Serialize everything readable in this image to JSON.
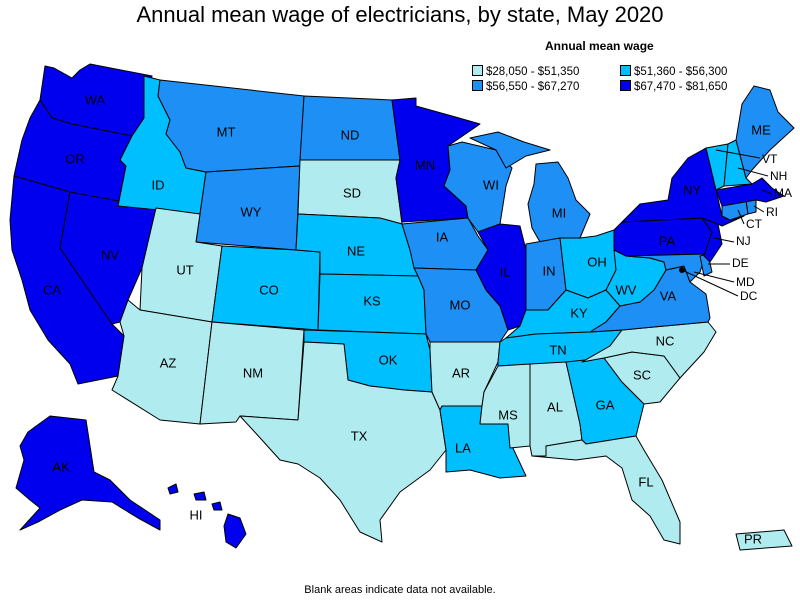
{
  "title": "Annual mean wage of electricians, by state, May 2020",
  "legend": {
    "title": "Annual mean wage",
    "items": [
      {
        "label": "$28,050 - $51,350",
        "color": "#b0ecef"
      },
      {
        "label": "$51,360 - $56,300",
        "color": "#00bfff"
      },
      {
        "label": "$56,550 - $67,270",
        "color": "#1e8ff5"
      },
      {
        "label": "$67,470 - $81,650",
        "color": "#0000ee"
      }
    ]
  },
  "footnote": "Blank areas indicate data not available.",
  "chart_data": {
    "type": "choropleth",
    "title": "Annual mean wage of electricians, by state, May 2020",
    "legend_title": "Annual mean wage",
    "bins": [
      "$28,050 - $51,350",
      "$51,360 - $56,300",
      "$56,550 - $67,270",
      "$67,470 - $81,650"
    ],
    "states": {
      "WA": 3,
      "OR": 3,
      "CA": 3,
      "NV": 3,
      "AK": 3,
      "HI": 3,
      "MN": 3,
      "IL": 3,
      "NY": 3,
      "PA": 3,
      "NJ": 3,
      "MA": 3,
      "MT": 2,
      "WY": 2,
      "ND": 2,
      "IA": 2,
      "MO": 2,
      "WI": 2,
      "MI": 2,
      "IN": 2,
      "VA": 2,
      "MD": 2,
      "DE": 2,
      "DC": 2,
      "ME": 2,
      "CT": 2,
      "RI": 2,
      "ID": 1,
      "CO": 1,
      "NE": 1,
      "KS": 1,
      "OK": 1,
      "TN": 1,
      "KY": 1,
      "OH": 1,
      "WV": 1,
      "GA": 1,
      "LA": 1,
      "VT": 1,
      "NH": 1,
      "UT": 0,
      "AZ": 0,
      "NM": 0,
      "TX": 0,
      "SD": 0,
      "AR": 0,
      "MS": 0,
      "AL": 0,
      "FL": 0,
      "SC": 0,
      "NC": 0,
      "PR": 0
    }
  },
  "labels": {
    "WA": "WA",
    "OR": "OR",
    "CA": "CA",
    "NV": "NV",
    "ID": "ID",
    "MT": "MT",
    "WY": "WY",
    "UT": "UT",
    "AZ": "AZ",
    "CO": "CO",
    "NM": "NM",
    "ND": "ND",
    "SD": "SD",
    "NE": "NE",
    "KS": "KS",
    "OK": "OK",
    "TX": "TX",
    "MN": "MN",
    "IA": "IA",
    "MO": "MO",
    "AR": "AR",
    "LA": "LA",
    "WI": "WI",
    "IL": "IL",
    "MI": "MI",
    "IN": "IN",
    "OH": "OH",
    "KY": "KY",
    "TN": "TN",
    "MS": "MS",
    "AL": "AL",
    "GA": "GA",
    "FL": "FL",
    "SC": "SC",
    "NC": "NC",
    "VA": "VA",
    "WV": "WV",
    "PA": "PA",
    "NY": "NY",
    "ME": "ME",
    "VT": "VT",
    "NH": "NH",
    "MA": "MA",
    "RI": "RI",
    "CT": "CT",
    "NJ": "NJ",
    "DE": "DE",
    "MD": "MD",
    "DC": "DC",
    "AK": "AK",
    "HI": "HI",
    "PR": "PR"
  }
}
